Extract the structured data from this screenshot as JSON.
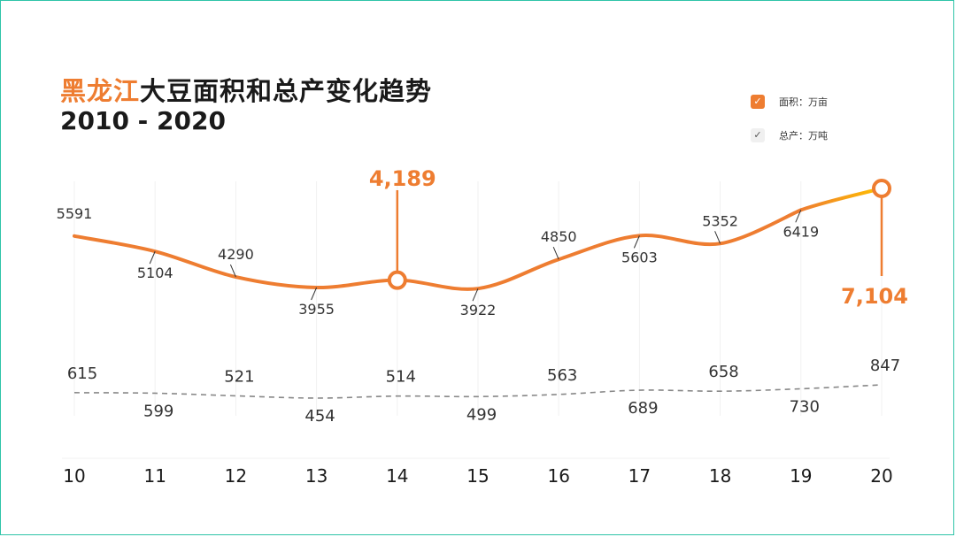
{
  "title": {
    "highlight": "黑龙江",
    "rest": "大豆面积和总产变化趋势",
    "years": "2010 - 2020"
  },
  "legend": [
    {
      "label": "面积：万亩",
      "color": "#ee7d31",
      "icon": "check-icon"
    },
    {
      "label": "总产：万吨",
      "color": "#888888",
      "icon": "check-icon"
    }
  ],
  "chart_data": {
    "type": "line",
    "categories": [
      "10",
      "11",
      "12",
      "13",
      "14",
      "15",
      "16",
      "17",
      "18",
      "19",
      "20"
    ],
    "series": [
      {
        "name": "面积：万亩",
        "values": [
          5591,
          5104,
          4290,
          3955,
          4189,
          3922,
          4850,
          5603,
          5352,
          6419,
          7104
        ],
        "labels": [
          "5591",
          "5104",
          "4290",
          "3955",
          "4,189",
          "3922",
          "4850",
          "5603",
          "5352",
          "6419",
          "7,104"
        ],
        "color": "#ee7d31",
        "end_color": "#ffc000",
        "highlights": [
          4,
          10
        ]
      },
      {
        "name": "总产：万吨",
        "values": [
          615,
          599,
          521,
          454,
          514,
          499,
          563,
          689,
          658,
          730,
          847
        ],
        "labels": [
          "615",
          "599",
          "521",
          "454",
          "514",
          "499",
          "563",
          "689",
          "658",
          "730",
          "847"
        ],
        "color": "#888888"
      }
    ]
  }
}
